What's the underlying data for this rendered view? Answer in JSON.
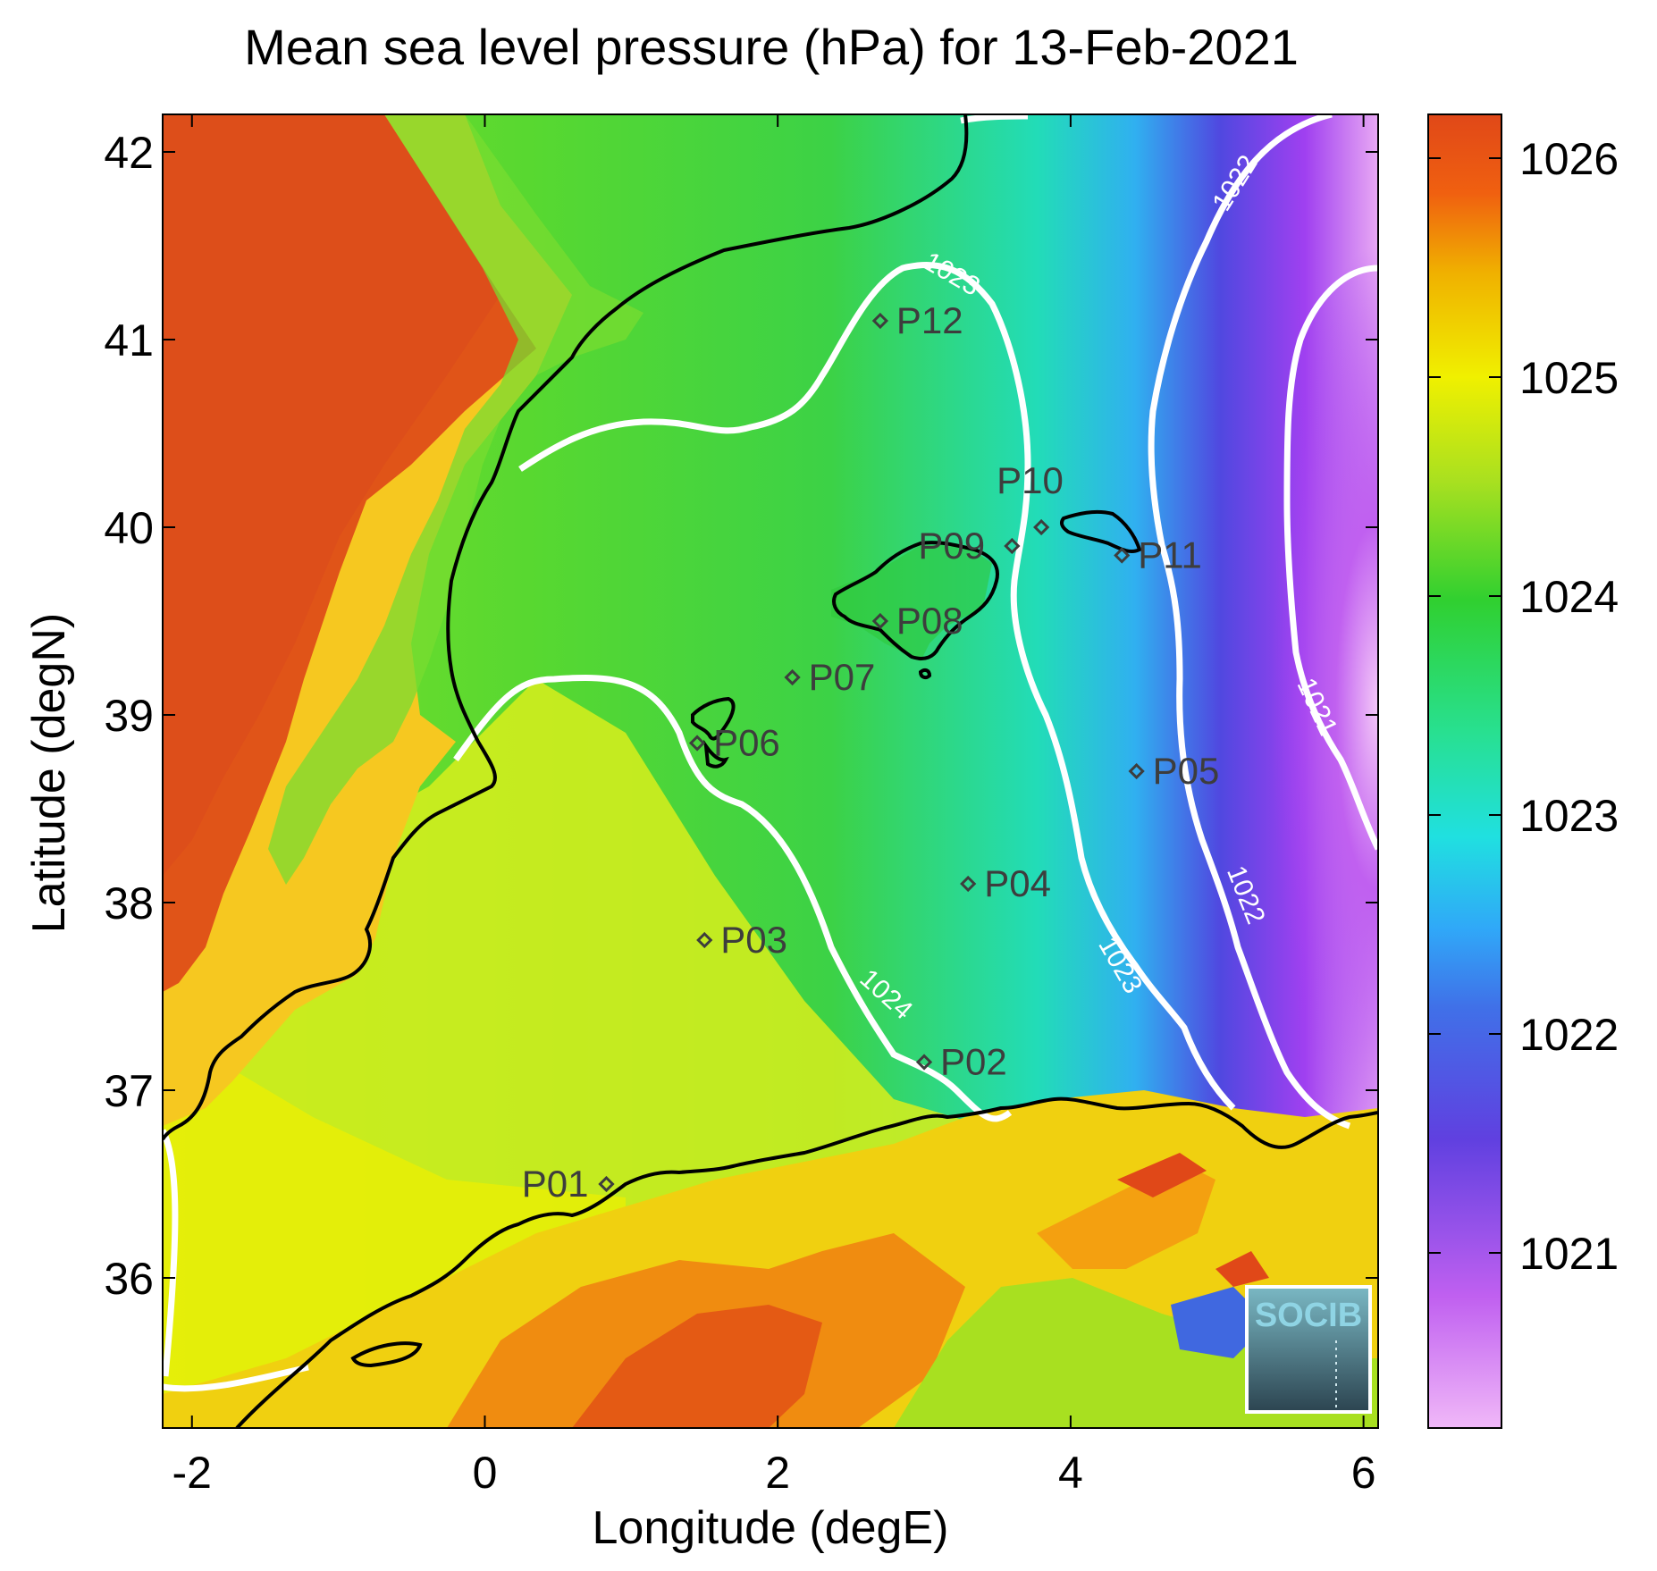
{
  "figure": {
    "title": "Mean sea level pressure (hPa) for 13-Feb-2021",
    "xlabel": "Longitude (degE)",
    "ylabel": "Latitude (degN)",
    "logo_text": "SOCIB"
  },
  "chart_data": {
    "type": "heatmap",
    "title": "Mean sea level pressure (hPa) for 13-Feb-2021",
    "xlabel": "Longitude (degE)",
    "ylabel": "Latitude (degN)",
    "xlim": [
      -2.2,
      6.1
    ],
    "ylim": [
      35.2,
      42.2
    ],
    "xticks": [
      -2,
      0,
      2,
      4,
      6
    ],
    "xtick_labels": [
      "-2",
      "0",
      "2",
      "4",
      "6"
    ],
    "yticks": [
      36,
      37,
      38,
      39,
      40,
      41,
      42
    ],
    "ytick_labels": [
      "36",
      "37",
      "38",
      "39",
      "40",
      "41",
      "42"
    ],
    "colorbar": {
      "range": [
        1020.2,
        1026.2
      ],
      "ticks": [
        1021,
        1022,
        1023,
        1024,
        1025,
        1026
      ],
      "tick_labels": [
        "1021",
        "1022",
        "1023",
        "1024",
        "1025",
        "1026"
      ],
      "colormap": [
        "#f0b8f8",
        "#a040f0",
        "#5040e0",
        "#30a0f8",
        "#20e0e0",
        "#20d040",
        "#b0e020",
        "#f0f000",
        "#f0a000",
        "#e04818"
      ]
    },
    "contours": [
      {
        "level": 1021,
        "label": "1021"
      },
      {
        "level": 1022,
        "label": "1022"
      },
      {
        "level": 1023,
        "label": "1023"
      },
      {
        "level": 1024,
        "label": "1024"
      }
    ],
    "stations": [
      {
        "name": "P01",
        "lon": 0.83,
        "lat": 36.5
      },
      {
        "name": "P02",
        "lon": 3.0,
        "lat": 37.15
      },
      {
        "name": "P03",
        "lon": 1.5,
        "lat": 37.8
      },
      {
        "name": "P04",
        "lon": 3.3,
        "lat": 38.1
      },
      {
        "name": "P05",
        "lon": 4.45,
        "lat": 38.7
      },
      {
        "name": "P06",
        "lon": 1.45,
        "lat": 38.85
      },
      {
        "name": "P07",
        "lon": 2.1,
        "lat": 39.2
      },
      {
        "name": "P08",
        "lon": 2.7,
        "lat": 39.5
      },
      {
        "name": "P09",
        "lon": 3.6,
        "lat": 39.9
      },
      {
        "name": "P10",
        "lon": 3.8,
        "lat": 40.0
      },
      {
        "name": "P11",
        "lon": 4.35,
        "lat": 39.85
      },
      {
        "name": "P12",
        "lon": 2.7,
        "lat": 41.1
      }
    ]
  }
}
